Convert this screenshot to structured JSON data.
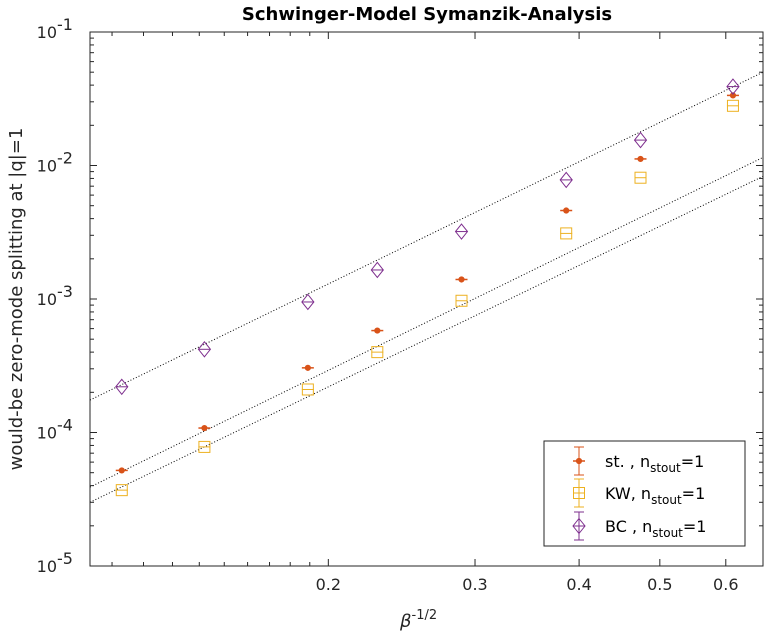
{
  "chart_data": {
    "type": "scatter",
    "title": "Schwinger-Model Symanzik-Analysis",
    "xlabel": "β",
    "xlabel_sup": "-1/2",
    "ylabel": "would-be zero-mode splitting at |q|=1",
    "xscale": "log",
    "yscale": "log",
    "xlim": [
      0.1035,
      0.665
    ],
    "ylim": [
      1e-05,
      0.1
    ],
    "xticks": [
      {
        "value": 0.2,
        "label": "0.2"
      },
      {
        "value": 0.3,
        "label": "0.3"
      },
      {
        "value": 0.4,
        "label": "0.4"
      },
      {
        "value": 0.5,
        "label": "0.5"
      },
      {
        "value": 0.6,
        "label": "0.6"
      }
    ],
    "yticks": [
      {
        "value": 1e-05,
        "base": "10",
        "exp": "-5"
      },
      {
        "value": 0.0001,
        "base": "10",
        "exp": "-4"
      },
      {
        "value": 0.001,
        "base": "10",
        "exp": "-3"
      },
      {
        "value": 0.01,
        "base": "10",
        "exp": "-2"
      },
      {
        "value": 0.1,
        "base": "10",
        "exp": "-1"
      }
    ],
    "x": [
      0.113,
      0.142,
      0.189,
      0.229,
      0.289,
      0.386,
      0.474,
      0.612
    ],
    "series": [
      {
        "name_main": "st. , n",
        "name_sub": "stout",
        "name_end": "=1",
        "marker": "dot",
        "color": "#D95319",
        "values": [
          5.2e-05,
          0.000108,
          0.000305,
          0.00058,
          0.0014,
          0.0046,
          0.0112,
          0.0335
        ]
      },
      {
        "name_main": "KW, n",
        "name_sub": "stout",
        "name_end": "=1",
        "marker": "square",
        "color": "#EDB120",
        "values": [
          3.7e-05,
          7.8e-05,
          0.00021,
          0.0004,
          0.00097,
          0.0031,
          0.0081,
          0.028
        ]
      },
      {
        "name_main": "BC , n",
        "name_sub": "stout",
        "name_end": "=1",
        "marker": "diamond",
        "color": "#7E2F8E",
        "values": [
          0.00022,
          0.00042,
          0.00095,
          0.00165,
          0.0032,
          0.0078,
          0.0155,
          0.039
        ]
      }
    ],
    "fit_lines": [
      {
        "x": [
          0.1035,
          0.665
        ],
        "y": [
          0.000175,
          0.05
        ]
      },
      {
        "x": [
          0.1035,
          0.665
        ],
        "y": [
          3.9e-05,
          0.0115
        ]
      },
      {
        "x": [
          0.1035,
          0.665
        ],
        "y": [
          3e-05,
          0.0083
        ]
      }
    ],
    "legend_placement": "bottom-right",
    "grid": false
  }
}
